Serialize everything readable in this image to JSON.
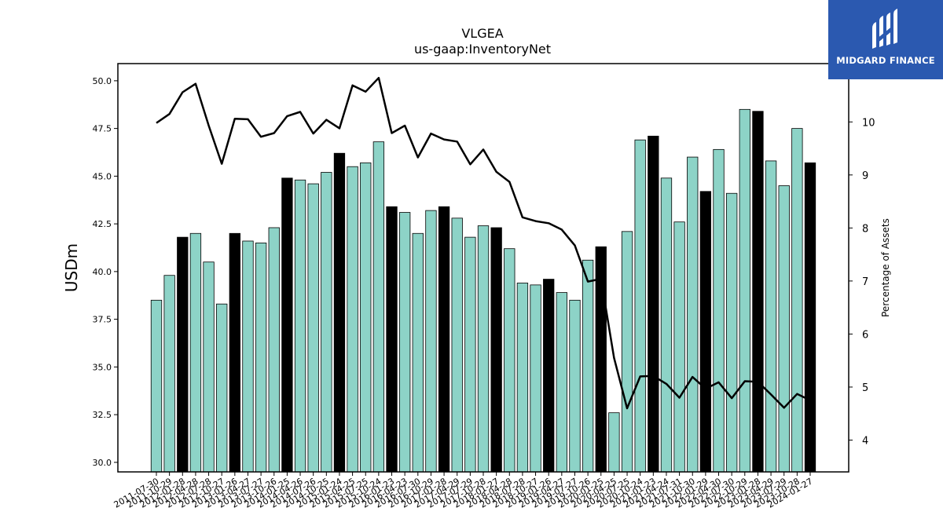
{
  "chart_data": {
    "type": "bar",
    "title": "VLGEA",
    "subtitle": "us-gaap:InventoryNet",
    "ylabel": "USDm",
    "y2label": "Percentage of Assets",
    "ylim": [
      29.5,
      50.9
    ],
    "y2lim": [
      3.4,
      11.1
    ],
    "yticks": [
      30.0,
      32.5,
      35.0,
      37.5,
      40.0,
      42.5,
      45.0,
      47.5,
      50.0
    ],
    "y2ticks": [
      4,
      5,
      6,
      7,
      8,
      9,
      10
    ],
    "bar_color": "#8dd3c7",
    "highlight_color": "#000000",
    "line_color": "#000000",
    "categories": [
      "2011-07-30",
      "2011-10-29",
      "2012-01-28",
      "2012-04-28",
      "2012-07-28",
      "2012-10-27",
      "2013-01-26",
      "2013-04-27",
      "2013-07-27",
      "2013-10-26",
      "2014-01-25",
      "2014-04-26",
      "2014-07-26",
      "2014-10-25",
      "2015-01-24",
      "2015-04-25",
      "2015-07-25",
      "2015-10-24",
      "2016-01-23",
      "2016-04-23",
      "2016-07-30",
      "2016-10-29",
      "2017-01-28",
      "2017-04-29",
      "2017-07-29",
      "2017-10-28",
      "2018-01-27",
      "2018-04-28",
      "2018-07-28",
      "2018-10-27",
      "2019-01-26",
      "2019-04-27",
      "2019-07-27",
      "2019-10-26",
      "2020-01-25",
      "2020-04-25",
      "2020-07-25",
      "2020-10-24",
      "2021-01-23",
      "2021-04-24",
      "2021-07-31",
      "2021-10-30",
      "2022-01-29",
      "2022-04-30",
      "2022-07-30",
      "2022-10-29",
      "2023-01-28",
      "2023-04-29",
      "2023-07-29",
      "2023-10-28",
      "2024-01-27"
    ],
    "values": [
      38.5,
      39.8,
      41.8,
      42.0,
      40.5,
      38.3,
      42.0,
      41.6,
      41.5,
      42.3,
      44.9,
      44.8,
      44.6,
      45.2,
      46.2,
      45.5,
      45.7,
      46.8,
      43.4,
      43.1,
      42.0,
      43.2,
      43.4,
      42.8,
      41.8,
      42.4,
      42.3,
      41.2,
      39.4,
      39.3,
      39.6,
      38.9,
      38.5,
      40.6,
      41.3,
      32.6,
      42.1,
      46.9,
      47.1,
      44.9,
      42.6,
      46.0,
      44.2,
      46.4,
      44.1,
      48.5,
      48.4,
      45.8,
      44.5,
      47.5,
      45.7
    ],
    "highlight": [
      false,
      false,
      true,
      false,
      false,
      false,
      true,
      false,
      false,
      false,
      true,
      false,
      false,
      false,
      true,
      false,
      false,
      false,
      true,
      false,
      false,
      false,
      true,
      false,
      false,
      false,
      true,
      false,
      false,
      false,
      true,
      false,
      false,
      false,
      true,
      false,
      false,
      false,
      true,
      false,
      false,
      false,
      true,
      false,
      false,
      false,
      true,
      false,
      false,
      false,
      true
    ],
    "series": [
      {
        "axis": "right",
        "type": "line",
        "values": [
          9.98,
          10.15,
          10.56,
          10.72,
          9.93,
          9.21,
          10.06,
          10.05,
          9.72,
          9.79,
          10.11,
          10.19,
          9.78,
          10.04,
          9.88,
          10.69,
          10.57,
          10.83,
          9.79,
          9.93,
          9.33,
          9.78,
          9.67,
          9.63,
          9.2,
          9.48,
          9.06,
          8.87,
          8.2,
          8.13,
          8.09,
          7.97,
          7.67,
          6.99,
          7.04,
          5.55,
          4.6,
          5.2,
          5.21,
          5.06,
          4.8,
          5.19,
          4.97,
          5.09,
          4.79,
          5.11,
          5.1,
          4.86,
          4.61,
          4.87,
          4.75
        ]
      }
    ]
  },
  "logo": {
    "brand": "MIDGARD FINANCE"
  }
}
